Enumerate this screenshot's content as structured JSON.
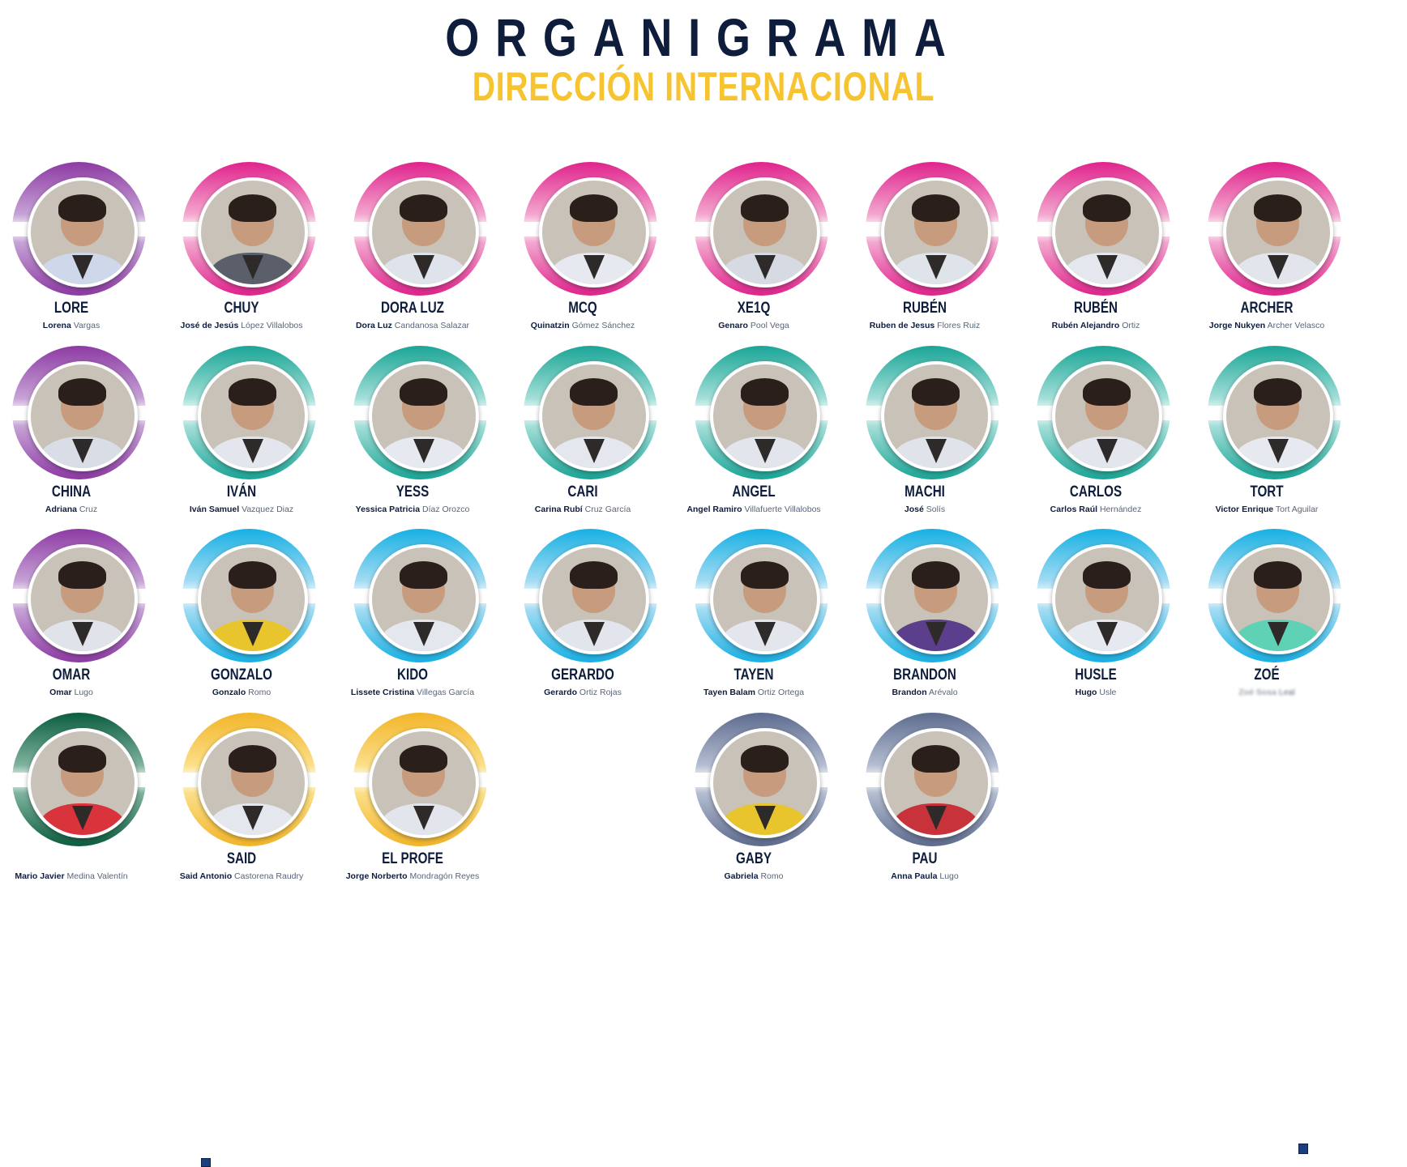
{
  "header": {
    "title": "ORGANIGRAMA",
    "subtitle": "DIRECCIÓN INTERNACIONAL"
  },
  "colors": {
    "purple": [
      "#8d3aa3",
      "#c6a3d6"
    ],
    "pink": [
      "#e0238c",
      "#f3a7cf"
    ],
    "teal": [
      "#1aa596",
      "#a3dfd8"
    ],
    "cyan": [
      "#17b0e3",
      "#a4dcf3"
    ],
    "green": [
      "#0b5d3f",
      "#7fb39e"
    ],
    "yellow": [
      "#f2b52a",
      "#fbdf88"
    ],
    "slate": [
      "#5d6b8e",
      "#b4bdd1"
    ]
  },
  "members": [
    {
      "nick": "LORE",
      "first": "Lorena",
      "last": "Vargas",
      "color": "purple",
      "shirt": "#cfd8ea"
    },
    {
      "nick": "CHUY",
      "first": "José de Jesús",
      "last": "López Villalobos",
      "color": "pink",
      "shirt": "#5a5f6a"
    },
    {
      "nick": "DORA LUZ",
      "first": "Dora Luz",
      "last": "Candanosa Salazar",
      "color": "pink",
      "shirt": "#dfe4ec"
    },
    {
      "nick": "MCQ",
      "first": "Quinatzin",
      "last": "Gómez Sánchez",
      "color": "pink",
      "shirt": "#e6e9ef"
    },
    {
      "nick": "XE1Q",
      "first": "Genaro",
      "last": "Pool Vega",
      "color": "pink",
      "shirt": "#d6dae2"
    },
    {
      "nick": "RUBÉN",
      "first": "Ruben de Jesus",
      "last": "Flores Ruiz",
      "color": "pink",
      "shirt": "#dfe3ea"
    },
    {
      "nick": "RUBÉN",
      "first": "Rubén Alejandro",
      "last": "Ortiz",
      "color": "pink",
      "shirt": "#e4e7ee"
    },
    {
      "nick": "ARCHER",
      "first": "Jorge Nukyen",
      "last": "Archer Velasco",
      "color": "pink",
      "shirt": "#e2e5ec"
    },
    {
      "nick": "CHINA",
      "first": "Adriana",
      "last": "Cruz",
      "color": "purple",
      "shirt": "#d8dde6"
    },
    {
      "nick": "IVÁN",
      "first": "Iván Samuel",
      "last": "Vazquez Diaz",
      "color": "teal",
      "shirt": "#e3e6ed"
    },
    {
      "nick": "YESS",
      "first": "Yessica Patricia",
      "last": "Díaz Orozco",
      "color": "teal",
      "shirt": "#e6e9ef"
    },
    {
      "nick": "CARI",
      "first": "Carina Rubí",
      "last": "Cruz García",
      "color": "teal",
      "shirt": "#e4e7ee"
    },
    {
      "nick": "ANGEL",
      "first": "Angel Ramiro",
      "last": "Villafuerte Villalobos",
      "color": "teal",
      "shirt": "#e2e5ec"
    },
    {
      "nick": "MACHI",
      "first": "José",
      "last": "Solís",
      "color": "teal",
      "shirt": "#e0e3ea"
    },
    {
      "nick": "CARLOS",
      "first": "Carlos Raúl",
      "last": "Hernández",
      "color": "teal",
      "shirt": "#e3e6ed"
    },
    {
      "nick": "TORT",
      "first": "Victor Enrique",
      "last": "Tort Aguilar",
      "color": "teal",
      "shirt": "#e6e9ef"
    },
    {
      "nick": "OMAR",
      "first": "Omar",
      "last": "Lugo",
      "color": "purple",
      "shirt": "#e0e3ea"
    },
    {
      "nick": "GONZALO",
      "first": "Gonzalo",
      "last": "Romo",
      "color": "cyan",
      "shirt": "#e9c52d"
    },
    {
      "nick": "KIDO",
      "first": "Lissete Cristina",
      "last": "Villegas García",
      "color": "cyan",
      "shirt": "#e4e7ee"
    },
    {
      "nick": "GERARDO",
      "first": "Gerardo",
      "last": "Ortiz Rojas",
      "color": "cyan",
      "shirt": "#e2e5ec"
    },
    {
      "nick": "TAYEN",
      "first": "Tayen Balam",
      "last": "Ortiz Ortega",
      "color": "cyan",
      "shirt": "#e3e6ed"
    },
    {
      "nick": "BRANDON",
      "first": "Brandon",
      "last": "Arévalo",
      "color": "cyan",
      "shirt": "#5b3f8c"
    },
    {
      "nick": "HUSLE",
      "first": "Hugo",
      "last": "Usle",
      "color": "cyan",
      "shirt": "#e6e9ef"
    },
    {
      "nick": "ZOÉ",
      "first": "Zoé Sosa",
      "last": "Leal",
      "color": "cyan",
      "shirt": "#5fd1b4",
      "blur": true
    },
    {
      "nick": "",
      "first": "Mario Javier",
      "last": "Medina Valentín",
      "color": "green",
      "shirt": "#d9333b"
    },
    {
      "nick": "SAID",
      "first": "Said Antonio",
      "last": "Castorena Raudry",
      "color": "yellow",
      "shirt": "#e4e7ee"
    },
    {
      "nick": "EL PROFE",
      "first": "Jorge Norberto",
      "last": "Mondragón Reyes",
      "color": "yellow",
      "shirt": "#e2e5ec"
    },
    {
      "nick": "GABY",
      "first": "Gabriela",
      "last": "Romo",
      "color": "slate",
      "shirt": "#e9c52d"
    },
    {
      "nick": "PAU",
      "first": "Anna Paula",
      "last": "Lugo",
      "color": "slate",
      "shirt": "#c8323b"
    }
  ]
}
